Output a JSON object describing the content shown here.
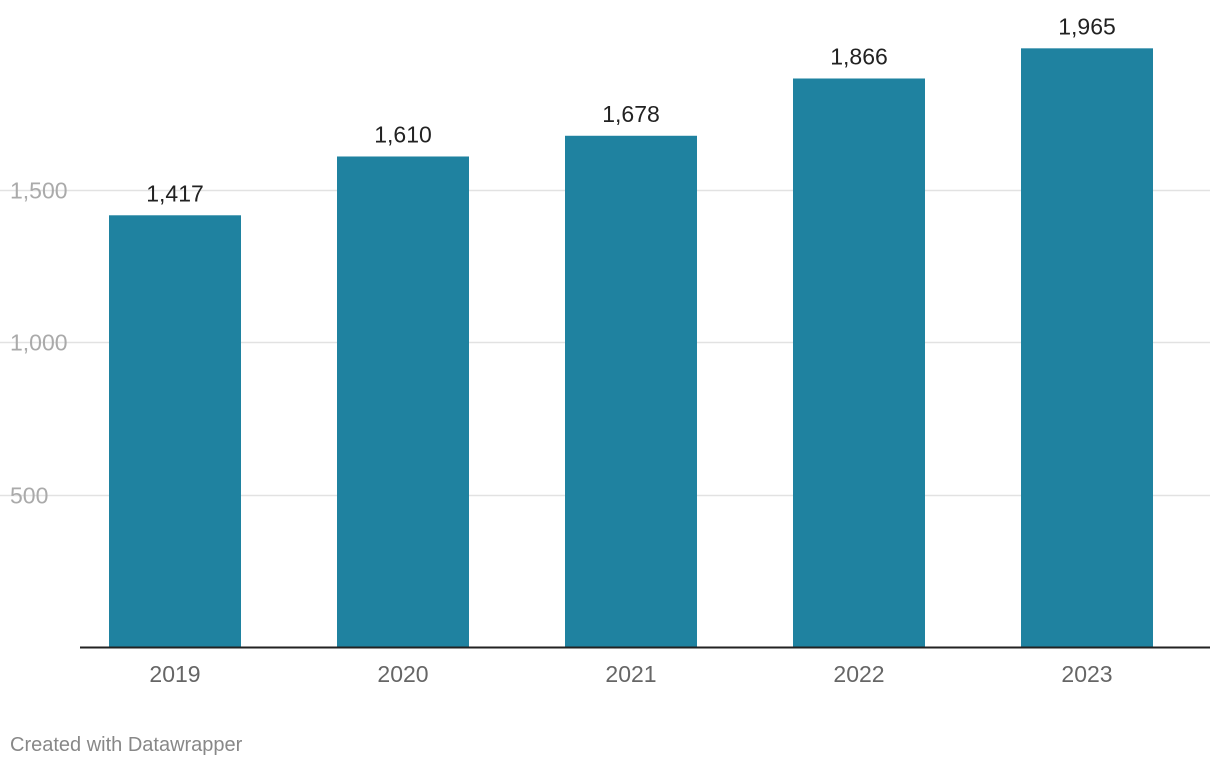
{
  "chart_data": {
    "type": "bar",
    "title": "",
    "xlabel": "",
    "ylabel": "",
    "categories": [
      "2019",
      "2020",
      "2021",
      "2022",
      "2023"
    ],
    "values": [
      1417,
      1610,
      1678,
      1866,
      1965
    ],
    "value_labels": [
      "1,417",
      "1,610",
      "1,678",
      "1,866",
      "1,965"
    ],
    "ylim": [
      0,
      2000
    ],
    "yticks": [
      500,
      1000,
      1500
    ],
    "ytick_labels": [
      "500",
      "1,000",
      "1,500"
    ],
    "grid": true,
    "bar_color": "#1f82a0",
    "grid_color": "#e2e2e2",
    "axis_color": "#222222"
  },
  "footer": {
    "credit": "Created with Datawrapper"
  }
}
